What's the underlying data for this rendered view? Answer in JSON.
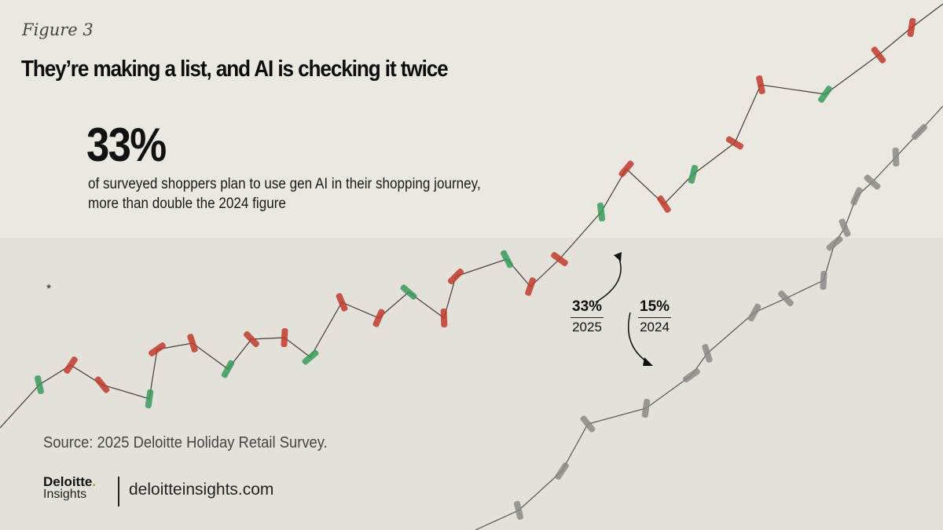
{
  "figure_label": "Figure 3",
  "title": "They’re making a list, and AI is checking it twice",
  "headline_stat": "33%",
  "headline_text": "of surveyed shoppers plan to use gen AI in their shopping journey, more than double the 2024 figure",
  "footnote_marker": "*",
  "source": "Source: 2025 Deloitte Holiday Retail Survey.",
  "logo": {
    "brand": "Deloitte",
    "dot": ".",
    "sub": "Insights"
  },
  "url": "deloitteinsights.com",
  "colors": {
    "red": "#c0392b",
    "green": "#3a9a5a",
    "gray": "#8a8a8a",
    "wire": "#4a3a3a",
    "accent": "#86bc25"
  },
  "chart_data": {
    "type": "bar",
    "title": "They’re making a list, and AI is checking it twice",
    "categories": [
      "2025",
      "2024"
    ],
    "values": [
      33,
      15
    ],
    "value_labels": [
      "33%",
      "15%"
    ],
    "unit": "% of surveyed shoppers planning to use gen AI"
  }
}
